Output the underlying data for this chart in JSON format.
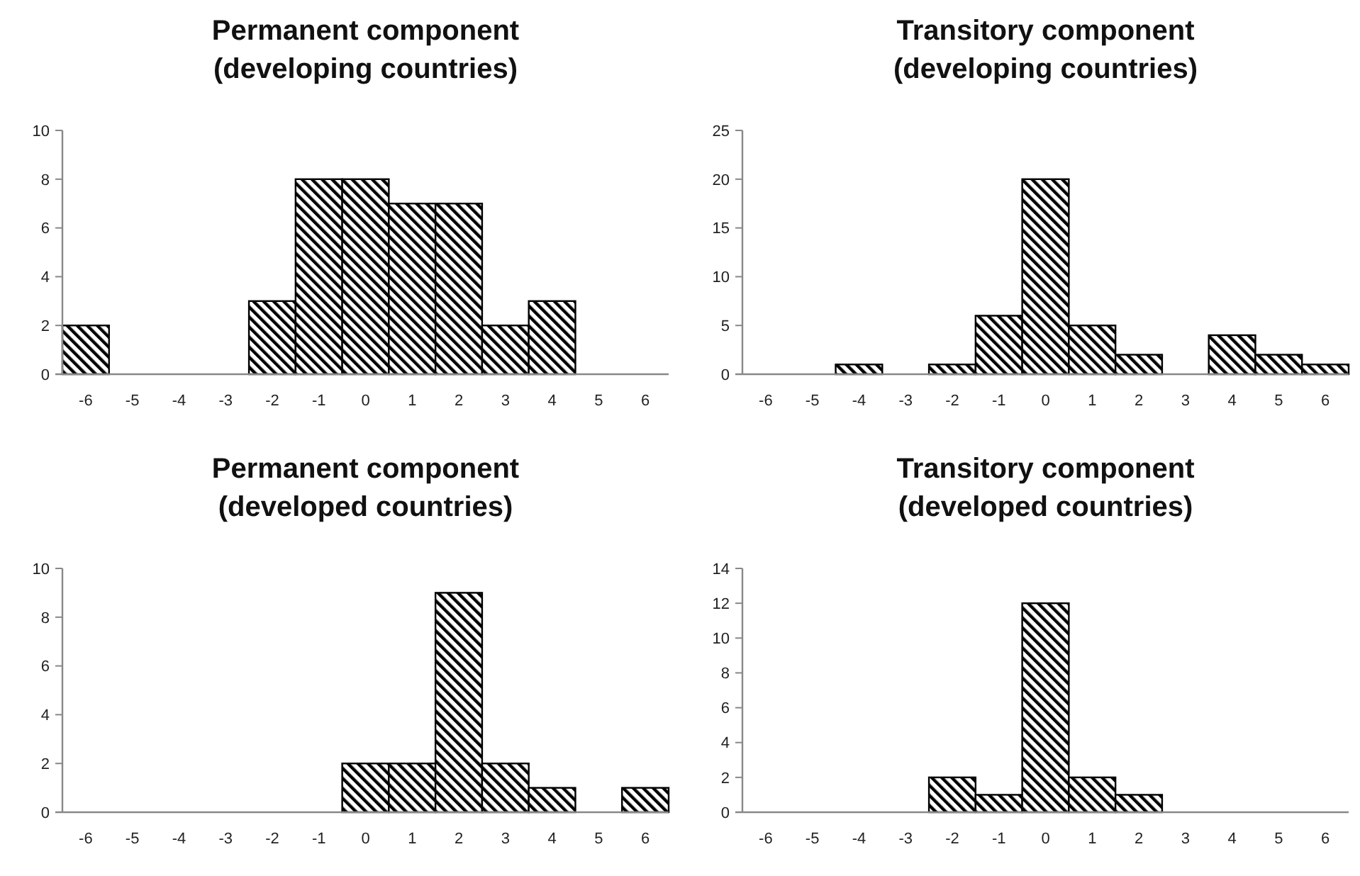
{
  "chart_data": [
    {
      "type": "bar",
      "title": "Permanent component\n(developing countries)",
      "categories": [
        "-6",
        "-5",
        "-4",
        "-3",
        "-2",
        "-1",
        "0",
        "1",
        "2",
        "3",
        "4",
        "5",
        "6"
      ],
      "values": [
        2,
        0,
        0,
        0,
        3,
        8,
        8,
        7,
        7,
        2,
        3,
        0,
        0
      ],
      "color": "#000000",
      "ylim": [
        0,
        10
      ],
      "yticks": [
        0,
        2,
        4,
        6,
        8,
        10
      ],
      "grid": false
    },
    {
      "type": "bar",
      "title": "Transitory component\n(developing countries)",
      "categories": [
        "-6",
        "-5",
        "-4",
        "-3",
        "-2",
        "-1",
        "0",
        "1",
        "2",
        "3",
        "4",
        "5",
        "6"
      ],
      "values": [
        0,
        0,
        1,
        0,
        1,
        6,
        20,
        5,
        2,
        0,
        4,
        2,
        1
      ],
      "color": "#000000",
      "ylim": [
        0,
        25
      ],
      "yticks": [
        0,
        5,
        10,
        15,
        20,
        25
      ],
      "grid": false
    },
    {
      "type": "bar",
      "title": "Permanent component\n(developed countries)",
      "categories": [
        "-6",
        "-5",
        "-4",
        "-3",
        "-2",
        "-1",
        "0",
        "1",
        "2",
        "3",
        "4",
        "5",
        "6"
      ],
      "values": [
        0,
        0,
        0,
        0,
        0,
        0,
        2,
        2,
        9,
        2,
        1,
        0,
        1
      ],
      "color": "#000000",
      "ylim": [
        0,
        10
      ],
      "yticks": [
        0,
        2,
        4,
        6,
        8,
        10
      ],
      "grid": false
    },
    {
      "type": "bar",
      "title": "Transitory component\n(developed countries)",
      "categories": [
        "-6",
        "-5",
        "-4",
        "-3",
        "-2",
        "-1",
        "0",
        "1",
        "2",
        "3",
        "4",
        "5",
        "6"
      ],
      "values": [
        0,
        0,
        0,
        0,
        2,
        1,
        12,
        2,
        1,
        0,
        0,
        0,
        0
      ],
      "color": "#000000",
      "ylim": [
        0,
        14
      ],
      "yticks": [
        0,
        2,
        4,
        6,
        8,
        10,
        12,
        14
      ],
      "grid": false
    }
  ]
}
